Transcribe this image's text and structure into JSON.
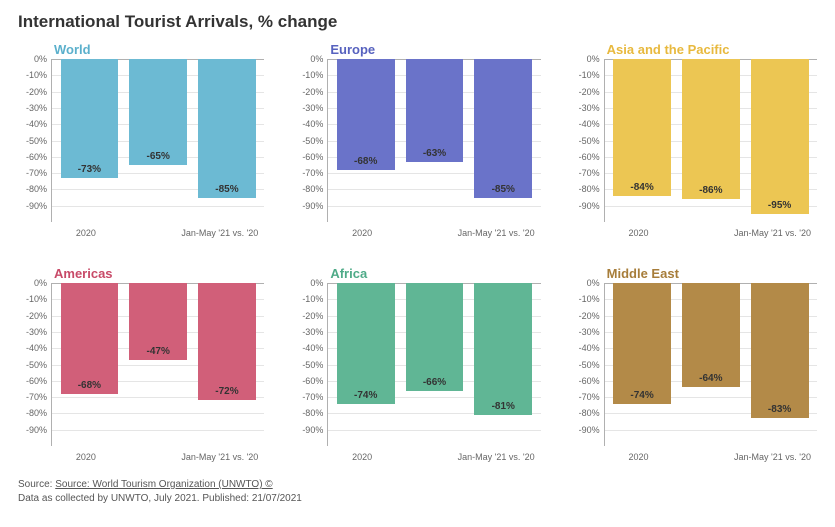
{
  "title": "International Tourist Arrivals, % change",
  "y_axis": {
    "min": -100,
    "max": 0,
    "ticks": [
      0,
      -10,
      -20,
      -30,
      -40,
      -50,
      -60,
      -70,
      -80,
      -90
    ],
    "tick_labels": [
      "0%",
      "-10%",
      "-20%",
      "-30%",
      "-40%",
      "-50%",
      "-60%",
      "-70%",
      "-80%",
      "-90%"
    ]
  },
  "x_labels": [
    "2020",
    "",
    "Jan-May '21 vs. '20"
  ],
  "panels": [
    {
      "title": "World",
      "title_color": "#5bb0cc",
      "bar_color": "#6cbad3",
      "values": [
        -73,
        -65,
        -85
      ],
      "labels": [
        "-73%",
        "-65%",
        "-85%"
      ]
    },
    {
      "title": "Europe",
      "title_color": "#5762bf",
      "bar_color": "#6a73c9",
      "values": [
        -68,
        -63,
        -85
      ],
      "labels": [
        "-68%",
        "-63%",
        "-85%"
      ]
    },
    {
      "title": "Asia and the Pacific",
      "title_color": "#e8b93e",
      "bar_color": "#ecc653",
      "values": [
        -84,
        -86,
        -95
      ],
      "labels": [
        "-84%",
        "-86%",
        "-95%"
      ]
    },
    {
      "title": "Americas",
      "title_color": "#c84a68",
      "bar_color": "#d15f79",
      "values": [
        -68,
        -47,
        -72
      ],
      "labels": [
        "-68%",
        "-47%",
        "-72%"
      ]
    },
    {
      "title": "Africa",
      "title_color": "#4fab88",
      "bar_color": "#60b695",
      "values": [
        -74,
        -66,
        -81
      ],
      "labels": [
        "-74%",
        "-66%",
        "-81%"
      ]
    },
    {
      "title": "Middle East",
      "title_color": "#a77d3a",
      "bar_color": "#b38a48",
      "values": [
        -74,
        -64,
        -83
      ],
      "labels": [
        "-74%",
        "-64%",
        "-83%"
      ]
    }
  ],
  "footer": {
    "line1_prefix": "Source: ",
    "line1_link": "Source: World Tourism Organization (UNWTO) ©",
    "line2": "Data as collected by UNWTO, July 2021. Published: 21/07/2021"
  },
  "style": {
    "background_color": "#ffffff",
    "grid_color": "#e5e5e5",
    "axis_color": "#b0b0b0",
    "title_fontsize": 17,
    "panel_title_fontsize": 13,
    "tick_fontsize": 9,
    "bar_label_fontsize": 10
  }
}
